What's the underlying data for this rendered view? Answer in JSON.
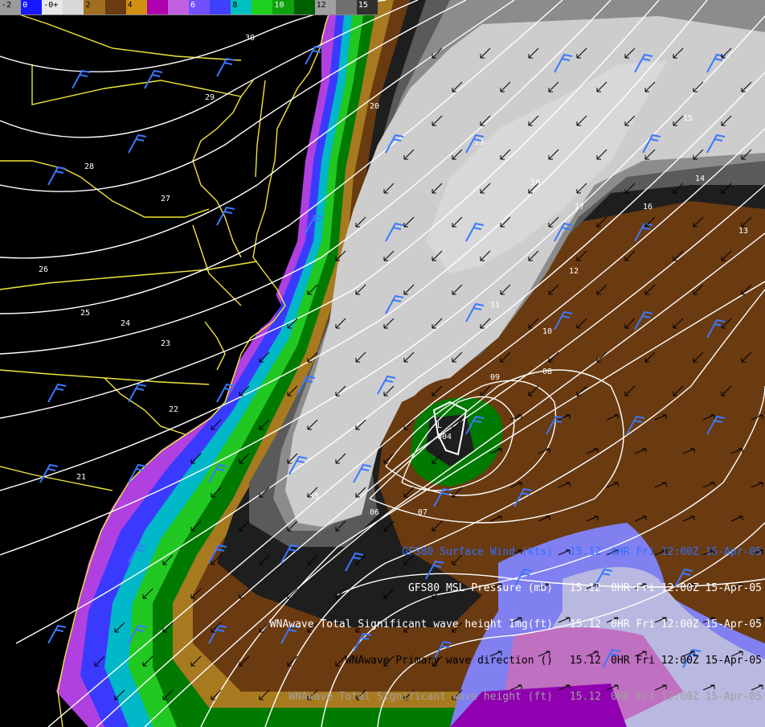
{
  "colorbar": {
    "labels": [
      "-2",
      "0",
      "-0+",
      "",
      "2",
      "",
      "4",
      "",
      "",
      "6",
      "",
      "8",
      "",
      "10",
      "",
      "12",
      "",
      "15"
    ],
    "colors": [
      "#9a9a9a",
      "#1818ff",
      "#e8e8e8",
      "#d8d8d8",
      "#a0701e",
      "#6a3a10",
      "#d09010",
      "#b000b0",
      "#c060e0",
      "#7050ff",
      "#4040ff",
      "#00c0c0",
      "#20d020",
      "#10a010",
      "#006000",
      "#a0a0a0",
      "#707070",
      "#303030"
    ]
  },
  "low_center": {
    "symbol": "L",
    "value": "004"
  },
  "isobar_labels": [
    "30",
    "29",
    "28",
    "27",
    "26",
    "25",
    "24",
    "23",
    "22",
    "21",
    "20",
    "19",
    "18",
    "17",
    "16",
    "15",
    "14",
    "13",
    "12",
    "11",
    "10",
    "09",
    "08",
    "07",
    "06",
    "05"
  ],
  "captions": [
    {
      "text": "GFS80 Surface Wind (kts)",
      "value": "15.12",
      "time": "0HR Fri 12:00Z 15-Apr-05",
      "color": "#3070ff"
    },
    {
      "text": "GFS80 MSL Pressure (mb)",
      "value": "15.12",
      "time": "0HR Fri 12:00Z 15-Apr-05",
      "color": "#ffffff"
    },
    {
      "text": "WNAwave Total Significant wave height Img(ft)",
      "value": "15.12",
      "time": "0HR Fri 12:00Z 15-Apr-05",
      "color": "#ffffff"
    },
    {
      "text": "WNAwave Primary wave direction ()",
      "value": "15.12",
      "time": "0HR Fri 12:00Z 15-Apr-05",
      "color": "#000000"
    },
    {
      "text": "WNAwave Total Significant wave height (ft)",
      "value": "15.12",
      "time": "0HR Fri 12:00Z 15-Apr-05",
      "color": "#a0a0a0"
    }
  ]
}
